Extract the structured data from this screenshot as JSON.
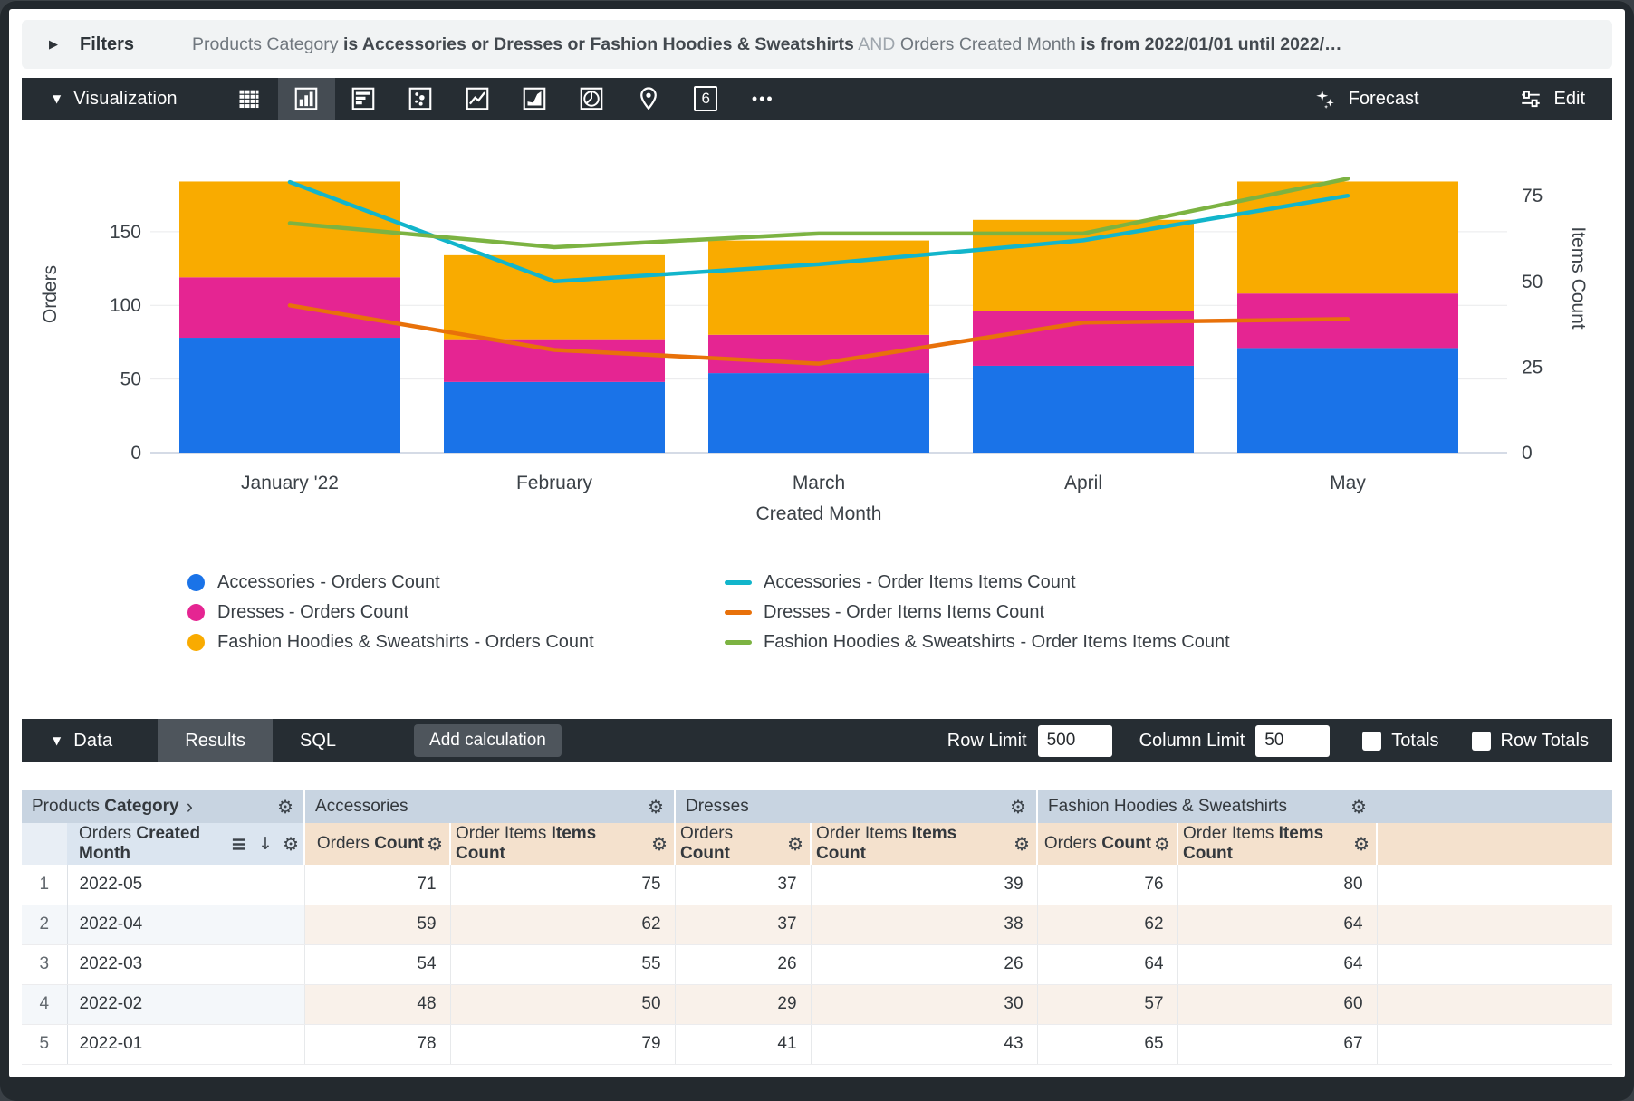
{
  "filters": {
    "label": "Filters",
    "parts": [
      {
        "text": "Products Category ",
        "emphasis": "dim"
      },
      {
        "text": "is Accessories or Dresses or Fashion Hoodies & Sweatshirts",
        "emphasis": "strong"
      },
      {
        "text": " AND ",
        "emphasis": "faint"
      },
      {
        "text": "Orders Created Month ",
        "emphasis": "dim"
      },
      {
        "text": "is from 2022/01/01 until 2022/…",
        "emphasis": "strong"
      }
    ]
  },
  "visualization": {
    "title": "Visualization",
    "icons": [
      "table",
      "column",
      "bar",
      "scatter",
      "line",
      "area",
      "pie",
      "map",
      "single-value",
      "more"
    ],
    "selected_icon": "column",
    "single_value_glyph": "6",
    "forecast_label": "Forecast",
    "edit_label": "Edit"
  },
  "icons": {
    "caret_right": "▶",
    "caret_down": "▼",
    "gear": "⚙",
    "chevron_right": "›",
    "arrow_down": "↓",
    "more": "•••"
  },
  "chart_data": {
    "type": "combo-stacked-bar-line",
    "categories": [
      "January '22",
      "February",
      "March",
      "April",
      "May"
    ],
    "bar_series": [
      {
        "name": "Accessories - Orders Count",
        "color": "#1A73E8",
        "values": [
          78,
          48,
          54,
          59,
          71
        ]
      },
      {
        "name": "Dresses - Orders Count",
        "color": "#E52592",
        "values": [
          41,
          29,
          26,
          37,
          37
        ]
      },
      {
        "name": "Fashion Hoodies & Sweatshirts - Orders Count",
        "color": "#F9AB00",
        "values": [
          65,
          57,
          64,
          62,
          76
        ]
      }
    ],
    "line_series": [
      {
        "name": "Accessories - Order Items Items Count",
        "color": "#12B5CB",
        "values": [
          79,
          50,
          55,
          62,
          75
        ]
      },
      {
        "name": "Dresses - Order Items Items Count",
        "color": "#E8710A",
        "values": [
          43,
          30,
          26,
          38,
          39
        ]
      },
      {
        "name": "Fashion Hoodies & Sweatshirts - Order Items Items Count",
        "color": "#7CB342",
        "values": [
          67,
          60,
          64,
          64,
          80
        ]
      }
    ],
    "xlabel": "Created Month",
    "ylabel_left": "Orders",
    "ylabel_right": "Items Count",
    "left_ticks": [
      0,
      50,
      100,
      150
    ],
    "right_ticks": [
      0,
      25,
      50,
      75
    ],
    "left_axis_max": 215,
    "right_axis_max": 92.5,
    "grid": true,
    "legend_position": "bottom"
  },
  "data_panel": {
    "title": "Data",
    "tabs": [
      {
        "label": "Results",
        "active": true
      },
      {
        "label": "SQL",
        "active": false
      }
    ],
    "add_calculation_label": "Add calculation",
    "row_limit_label": "Row Limit",
    "row_limit_value": "500",
    "column_limit_label": "Column Limit",
    "column_limit_value": "50",
    "totals_label": "Totals",
    "row_totals_label": "Row Totals"
  },
  "table": {
    "dimension_group_header": {
      "plain": "Products ",
      "bold": "Category"
    },
    "group_headers": [
      "Accessories",
      "Dresses",
      "Fashion Hoodies & Sweatshirts"
    ],
    "dimension_header": {
      "plain": "Orders ",
      "bold": "Created Month"
    },
    "measure_headers": [
      {
        "plain": "Orders ",
        "bold": "Count"
      },
      {
        "plain": "Order Items ",
        "bold": "Items Count"
      },
      {
        "plain": "Orders ",
        "bold": "Count"
      },
      {
        "plain": "Order Items ",
        "bold": "Items Count"
      },
      {
        "plain": "Orders ",
        "bold": "Count"
      },
      {
        "plain": "Order Items ",
        "bold": "Items Count"
      }
    ],
    "rows": [
      {
        "num": "1",
        "dimension": "2022-05",
        "values": [
          "71",
          "75",
          "37",
          "39",
          "76",
          "80"
        ]
      },
      {
        "num": "2",
        "dimension": "2022-04",
        "values": [
          "59",
          "62",
          "37",
          "38",
          "62",
          "64"
        ]
      },
      {
        "num": "3",
        "dimension": "2022-03",
        "values": [
          "54",
          "55",
          "26",
          "26",
          "64",
          "64"
        ]
      },
      {
        "num": "4",
        "dimension": "2022-02",
        "values": [
          "48",
          "50",
          "29",
          "30",
          "57",
          "60"
        ]
      },
      {
        "num": "5",
        "dimension": "2022-01",
        "values": [
          "78",
          "79",
          "41",
          "43",
          "65",
          "67"
        ]
      }
    ]
  },
  "colors": {
    "toolbar_dark": "#262D33",
    "header_blue": "#C8D4E1",
    "header_tan": "#F4E1CD",
    "accent_blue": "#1A73E8",
    "magenta": "#E52592",
    "amber": "#F9AB00",
    "teal": "#12B5CB",
    "orange": "#E8710A",
    "green": "#7CB342"
  }
}
